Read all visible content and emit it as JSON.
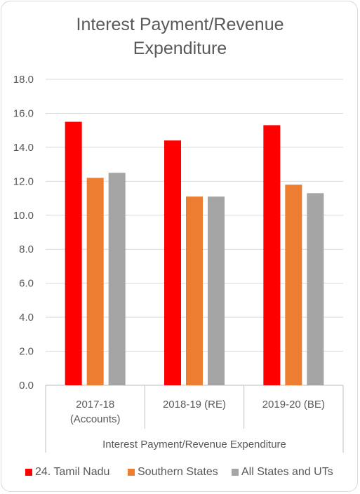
{
  "chart_data": {
    "type": "bar",
    "title": "Interest Payment/Revenue Expenditure",
    "title_lines": [
      "Interest Payment/Revenue",
      "Expenditure"
    ],
    "xlabel": "Interest Payment/Revenue Expenditure",
    "ylabel": "",
    "ylim": [
      0,
      18
    ],
    "yticks": [
      "0.0",
      "2.0",
      "4.0",
      "6.0",
      "8.0",
      "10.0",
      "12.0",
      "14.0",
      "16.0",
      "18.0"
    ],
    "grid": true,
    "legend_position": "bottom",
    "categories": [
      "2017-18 (Accounts)",
      "2018-19 (RE)",
      "2019-20 (BE)"
    ],
    "category_lines": [
      [
        "2017-18",
        "(Accounts)"
      ],
      [
        "2018-19 (RE)"
      ],
      [
        "2019-20 (BE)"
      ]
    ],
    "series": [
      {
        "name": "24. Tamil Nadu",
        "color": "#ff0000",
        "values": [
          15.5,
          14.4,
          15.3
        ]
      },
      {
        "name": "Southern States",
        "color": "#ed7d31",
        "values": [
          12.2,
          11.1,
          11.8
        ]
      },
      {
        "name": "All States and UTs",
        "color": "#a5a5a5",
        "values": [
          12.5,
          11.1,
          11.3
        ]
      }
    ]
  }
}
